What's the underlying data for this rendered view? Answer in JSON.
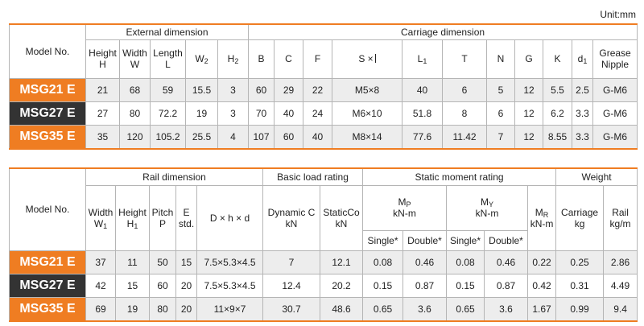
{
  "unit": "Unit:mm",
  "table1": {
    "model_header": "Model No.",
    "group_external": "External dimension",
    "group_carriage": "Carriage dimension",
    "cols": {
      "height": "Height",
      "height_sym": "H",
      "width": "Width",
      "width_sym": "W",
      "length": "Length",
      "length_sym": "L",
      "w2": "W",
      "w2_sub": "2",
      "h2": "H",
      "h2_sub": "2",
      "b": "B",
      "c": "C",
      "f": "F",
      "s": "S ×",
      "l1": "L",
      "l1_sub": "1",
      "t": "T",
      "n": "N",
      "g": "G",
      "k": "K",
      "d1": "d",
      "d1_sub": "1",
      "grease1": "Grease",
      "grease2": "Nipple"
    },
    "rows": [
      {
        "model": "MSG21 E",
        "v": [
          "21",
          "68",
          "59",
          "15.5",
          "3",
          "60",
          "29",
          "22",
          "M5×8",
          "40",
          "6",
          "5",
          "12",
          "5.5",
          "2.5",
          "G-M6"
        ]
      },
      {
        "model": "MSG27 E",
        "v": [
          "27",
          "80",
          "72.2",
          "19",
          "3",
          "70",
          "40",
          "24",
          "M6×10",
          "51.8",
          "8",
          "6",
          "12",
          "6.2",
          "3.3",
          "G-M6"
        ]
      },
      {
        "model": "MSG35 E",
        "v": [
          "35",
          "120",
          "105.2",
          "25.5",
          "4",
          "107",
          "60",
          "40",
          "M8×14",
          "77.6",
          "11.42",
          "7",
          "12",
          "8.55",
          "3.3",
          "G-M6"
        ]
      }
    ]
  },
  "table2": {
    "model_header": "Model No.",
    "group_rail": "Rail dimension",
    "group_load": "Basic load rating",
    "group_moment": "Static moment rating",
    "group_weight": "Weight",
    "cols": {
      "width": "Width",
      "width_sym": "W",
      "width_sub": "1",
      "height": "Height",
      "height_sym": "H",
      "height_sub": "1",
      "pitch": "Pitch",
      "pitch_sym": "P",
      "e": "E",
      "e2": "std.",
      "dhd": "D × h × d",
      "dyn": "Dynamic C",
      "dyn_unit": "kN",
      "stat": "StaticCo",
      "stat_unit": "kN",
      "mp": "M",
      "mp_sub": "P",
      "mp_unit": "kN-m",
      "my": "M",
      "my_sub": "Y",
      "my_unit": "kN-m",
      "mr": "M",
      "mr_sub": "R",
      "mr_unit": "kN-m",
      "single": "Single*",
      "double": "Double*",
      "carriage": "Carriage",
      "carriage_unit": "kg",
      "rail": "Rail",
      "rail_unit": "kg/m"
    },
    "rows": [
      {
        "model": "MSG21 E",
        "v": [
          "37",
          "11",
          "50",
          "15",
          "7.5×5.3×4.5",
          "7",
          "12.1",
          "0.08",
          "0.46",
          "0.08",
          "0.46",
          "0.22",
          "0.25",
          "2.86"
        ]
      },
      {
        "model": "MSG27 E",
        "v": [
          "42",
          "15",
          "60",
          "20",
          "7.5×5.3×4.5",
          "12.4",
          "20.2",
          "0.15",
          "0.87",
          "0.15",
          "0.87",
          "0.42",
          "0.31",
          "4.49"
        ]
      },
      {
        "model": "MSG35 E",
        "v": [
          "69",
          "19",
          "80",
          "20",
          "11×9×7",
          "30.7",
          "48.6",
          "0.65",
          "3.6",
          "0.65",
          "3.6",
          "1.67",
          "0.99",
          "9.4"
        ]
      }
    ]
  }
}
